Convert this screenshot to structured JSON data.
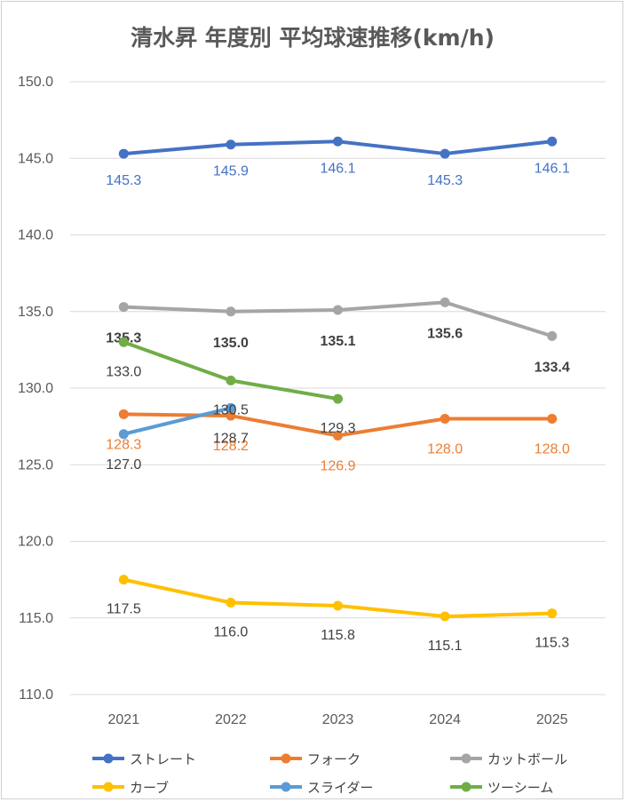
{
  "chart_data": {
    "type": "line",
    "title": "清水昇 年度別 平均球速推移(km/h)",
    "xlabel": "",
    "ylabel": "",
    "categories": [
      "2021",
      "2022",
      "2023",
      "2024",
      "2025"
    ],
    "ylim": [
      110,
      150
    ],
    "yticks": [
      "110.0",
      "115.0",
      "120.0",
      "125.0",
      "130.0",
      "135.0",
      "140.0",
      "145.0",
      "150.0"
    ],
    "grid": true,
    "legend_position": "bottom",
    "series": [
      {
        "name": "ストレート",
        "color": "#4472C4",
        "values": [
          145.3,
          145.9,
          146.1,
          145.3,
          146.1
        ],
        "labels": [
          "145.3",
          "145.9",
          "146.1",
          "145.3",
          "146.1"
        ]
      },
      {
        "name": "フォーク",
        "color": "#ED7D31",
        "values": [
          128.3,
          128.2,
          126.9,
          128.0,
          128.0
        ],
        "labels": [
          "128.3",
          "128.2",
          "126.9",
          "128.0",
          "128.0"
        ]
      },
      {
        "name": "カットボール",
        "color": "#A5A5A5",
        "values": [
          135.3,
          135.0,
          135.1,
          135.6,
          133.4
        ],
        "labels": [
          "135.3",
          "135.0",
          "135.1",
          "135.6",
          "133.4"
        ]
      },
      {
        "name": "カーブ",
        "color": "#FFC000",
        "values": [
          117.5,
          116.0,
          115.8,
          115.1,
          115.3
        ],
        "labels": [
          "117.5",
          "116.0",
          "115.8",
          "115.1",
          "115.3"
        ]
      },
      {
        "name": "スライダー",
        "color": "#5B9BD5",
        "values": [
          127.0,
          128.7,
          null,
          null,
          null
        ],
        "labels": [
          "127.0",
          "128.7",
          null,
          null,
          null
        ]
      },
      {
        "name": "ツーシーム",
        "color": "#70AD47",
        "values": [
          133.0,
          130.5,
          129.3,
          null,
          null
        ],
        "labels": [
          "133.0",
          "130.5",
          "129.3",
          null,
          null
        ]
      }
    ]
  }
}
